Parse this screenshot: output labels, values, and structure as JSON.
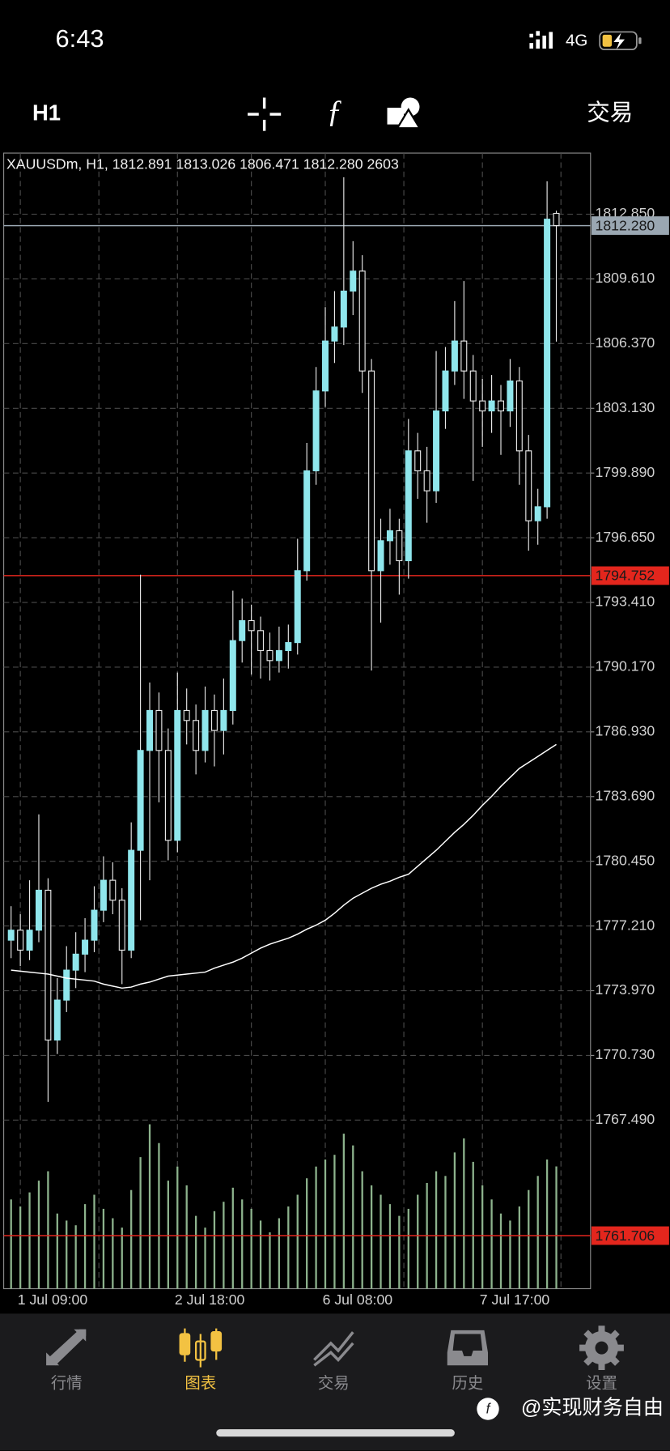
{
  "status_bar": {
    "time": "6:43",
    "network": "4G"
  },
  "toolbar": {
    "timeframe": "H1",
    "trade": "交易"
  },
  "chart_data": {
    "type": "candlestick",
    "title": "XAUUSDm, H1, 1812.891 1813.026 1806.471 1812.280 2603",
    "categories": [
      null,
      "1 Jul 09:00",
      null,
      null,
      null,
      null,
      null,
      null,
      null,
      null,
      null,
      null,
      null,
      null,
      null,
      null,
      null,
      null,
      "2 Jul 18:00",
      null,
      null,
      null,
      null,
      null,
      null,
      null,
      null,
      null,
      null,
      null,
      null,
      null,
      null,
      null,
      "6 Jul 08:00",
      null,
      null,
      null,
      null,
      null,
      null,
      null,
      null,
      null,
      null,
      null,
      null,
      null,
      null,
      null,
      null,
      "7 Jul 17:00",
      null,
      null,
      null,
      null,
      null,
      null,
      null,
      null
    ],
    "candles": [
      [
        1776.5,
        1778.2,
        1775.6,
        1777
      ],
      [
        1777,
        1777.8,
        1775.2,
        1776
      ],
      [
        1776,
        1779.5,
        1775.5,
        1777
      ],
      [
        1777,
        1782.8,
        1776.4,
        1779
      ],
      [
        1779,
        1779.6,
        1768.4,
        1771.5
      ],
      [
        1771.5,
        1774.6,
        1770.8,
        1773.5
      ],
      [
        1773.5,
        1776.2,
        1772.9,
        1775
      ],
      [
        1775,
        1776.9,
        1774.1,
        1775.8
      ],
      [
        1775.8,
        1777.6,
        1774.9,
        1776.5
      ],
      [
        1776.5,
        1779.2,
        1775.9,
        1778
      ],
      [
        1778,
        1780.7,
        1777.4,
        1779.5
      ],
      [
        1779.5,
        1780.4,
        1777.8,
        1778.5
      ],
      [
        1778.5,
        1779.1,
        1774.3,
        1776
      ],
      [
        1776,
        1782.4,
        1775.6,
        1781
      ],
      [
        1781,
        1794.8,
        1777.5,
        1786
      ],
      [
        1786,
        1789.4,
        1779.5,
        1788
      ],
      [
        1788,
        1788.9,
        1783.4,
        1786
      ],
      [
        1786,
        1787.1,
        1780.5,
        1781.5
      ],
      [
        1781.5,
        1789.9,
        1780.9,
        1788
      ],
      [
        1788,
        1789.1,
        1786.3,
        1787.5
      ],
      [
        1787.5,
        1788.3,
        1784.8,
        1786
      ],
      [
        1786,
        1789.2,
        1785.4,
        1788
      ],
      [
        1788,
        1788.8,
        1785.2,
        1787
      ],
      [
        1787,
        1789.6,
        1785.8,
        1788
      ],
      [
        1788,
        1794,
        1787.3,
        1791.5
      ],
      [
        1791.5,
        1793.6,
        1790.4,
        1792.5
      ],
      [
        1792.5,
        1793.3,
        1789.8,
        1792
      ],
      [
        1792,
        1792.7,
        1789.6,
        1791
      ],
      [
        1791,
        1791.9,
        1789.5,
        1790.5
      ],
      [
        1790.5,
        1792.2,
        1789.9,
        1791
      ],
      [
        1791,
        1792.3,
        1790.1,
        1791.4
      ],
      [
        1791.4,
        1796.6,
        1790.8,
        1795
      ],
      [
        1795,
        1801.4,
        1794.5,
        1800
      ],
      [
        1800,
        1805.2,
        1799.3,
        1804
      ],
      [
        1804,
        1808.2,
        1803.2,
        1806.5
      ],
      [
        1806.5,
        1809,
        1805.4,
        1807.2
      ],
      [
        1807.2,
        1814.7,
        1806.3,
        1809
      ],
      [
        1809,
        1811.5,
        1807.8,
        1810
      ],
      [
        1810,
        1810.8,
        1803.9,
        1805
      ],
      [
        1805,
        1805.6,
        1790,
        1795
      ],
      [
        1795,
        1797.6,
        1792.4,
        1796.5
      ],
      [
        1796.5,
        1798.1,
        1795.3,
        1797
      ],
      [
        1797,
        1797.6,
        1793.8,
        1795.5
      ],
      [
        1795.5,
        1802.6,
        1794.6,
        1801
      ],
      [
        1801,
        1801.9,
        1798.6,
        1800
      ],
      [
        1800,
        1801.2,
        1797.4,
        1799
      ],
      [
        1799,
        1806,
        1798.4,
        1803
      ],
      [
        1803,
        1806.2,
        1802.1,
        1805
      ],
      [
        1805,
        1808.5,
        1804.3,
        1806.5
      ],
      [
        1806.5,
        1809.5,
        1803.6,
        1805
      ],
      [
        1805,
        1805.8,
        1799.5,
        1803.5
      ],
      [
        1803.5,
        1804.6,
        1801.2,
        1803
      ],
      [
        1803,
        1804.8,
        1801.9,
        1803.5
      ],
      [
        1803.5,
        1804.3,
        1800.8,
        1803
      ],
      [
        1803,
        1805.6,
        1802.2,
        1804.5
      ],
      [
        1804.5,
        1805.2,
        1799.3,
        1801
      ],
      [
        1801,
        1801.8,
        1796,
        1797.5
      ],
      [
        1797.5,
        1799.1,
        1796.3,
        1798.2
      ],
      [
        1798.2,
        1814.5,
        1797.6,
        1812.6
      ],
      [
        1812.891,
        1813.026,
        1806.471,
        1812.28
      ]
    ],
    "up_color": "#8fe6ec",
    "down_color": "#000000",
    "wick_color": "#e8e8e8",
    "ma": {
      "color": "#ffffff",
      "values": [
        1775.0,
        1774.95,
        1774.9,
        1774.85,
        1774.8,
        1774.7,
        1774.6,
        1774.55,
        1774.5,
        1774.45,
        1774.3,
        1774.2,
        1774.1,
        1774.15,
        1774.3,
        1774.4,
        1774.55,
        1774.7,
        1774.75,
        1774.8,
        1774.85,
        1774.9,
        1775.1,
        1775.25,
        1775.4,
        1775.6,
        1775.85,
        1776.1,
        1776.3,
        1776.45,
        1776.6,
        1776.8,
        1777.05,
        1777.25,
        1777.5,
        1777.85,
        1778.25,
        1778.6,
        1778.85,
        1779.1,
        1779.3,
        1779.45,
        1779.65,
        1779.8,
        1780.2,
        1780.6,
        1781.0,
        1781.45,
        1781.9,
        1782.3,
        1782.75,
        1783.25,
        1783.7,
        1784.2,
        1784.65,
        1785.1,
        1785.4,
        1785.7,
        1786.0,
        1786.3
      ]
    },
    "volume": {
      "color": "#8db38d",
      "vlim": [
        0,
        3800
      ],
      "values": [
        1900,
        1750,
        2050,
        2300,
        2500,
        1600,
        1450,
        1350,
        1800,
        2000,
        1700,
        1500,
        1300,
        2100,
        2800,
        3500,
        3100,
        2300,
        2600,
        2200,
        1550,
        1300,
        1650,
        1850,
        2150,
        1900,
        1700,
        1450,
        1200,
        1500,
        1750,
        2000,
        2350,
        2600,
        2750,
        2850,
        3300,
        3050,
        2500,
        2200,
        2000,
        1800,
        1550,
        1700,
        2000,
        2250,
        2500,
        2400,
        2900,
        3200,
        2700,
        2200,
        1900,
        1600,
        1450,
        1750,
        2100,
        2400,
        2750,
        2603
      ]
    },
    "ylim": [
      1759.05,
      1815.91
    ],
    "yticks": [
      {
        "value": 1812.85,
        "label": "1812.850"
      },
      {
        "value": 1809.61,
        "label": "1809.610"
      },
      {
        "value": 1806.37,
        "label": "1806.370"
      },
      {
        "value": 1803.13,
        "label": "1803.130"
      },
      {
        "value": 1799.89,
        "label": "1799.890"
      },
      {
        "value": 1796.65,
        "label": "1796.650"
      },
      {
        "value": 1793.41,
        "label": "1793.410"
      },
      {
        "value": 1790.17,
        "label": "1790.170"
      },
      {
        "value": 1786.93,
        "label": "1786.930"
      },
      {
        "value": 1783.69,
        "label": "1783.690"
      },
      {
        "value": 1780.45,
        "label": "1780.450"
      },
      {
        "value": 1777.21,
        "label": "1777.210"
      },
      {
        "value": 1773.97,
        "label": "1773.970"
      },
      {
        "value": 1770.73,
        "label": "1770.730"
      },
      {
        "value": 1767.49,
        "label": "1767.490"
      }
    ],
    "grid": true,
    "price_lines": [
      {
        "value": 1812.28,
        "label": "1812.280",
        "color": "#9aa7b2"
      },
      {
        "value": 1794.752,
        "label": "1794.752",
        "color": "#e3261d"
      },
      {
        "value": 1761.706,
        "label": "1761.706",
        "color": "#e3261d"
      }
    ]
  },
  "tab_bar": {
    "tabs": [
      {
        "label": "行情"
      },
      {
        "label": "图表"
      },
      {
        "label": "交易"
      },
      {
        "label": "历史"
      },
      {
        "label": "设置"
      }
    ],
    "active_color": "#f3c242"
  },
  "watermark": "@实现财务自由"
}
